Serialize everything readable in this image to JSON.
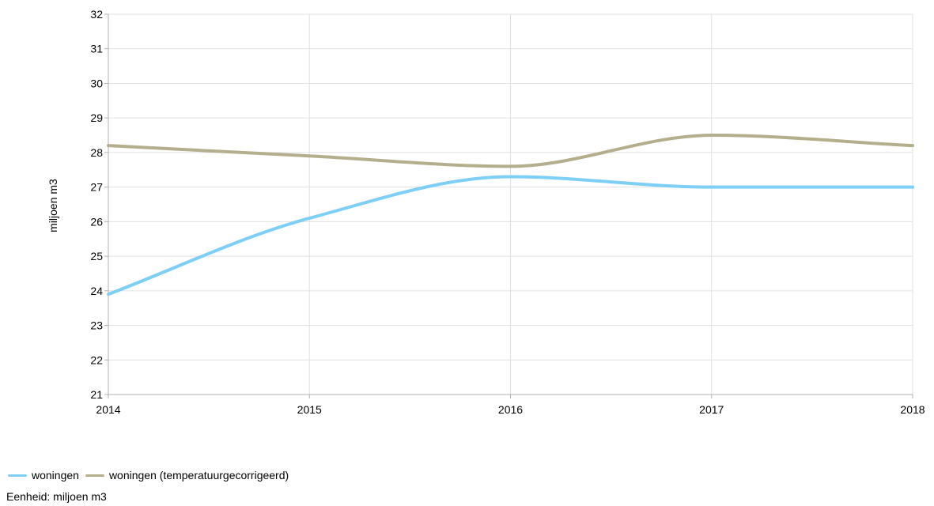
{
  "chart_data": {
    "type": "line",
    "x": [
      2014,
      2015,
      2016,
      2017,
      2018
    ],
    "xlim": [
      2014,
      2018
    ],
    "ylim": [
      21,
      32
    ],
    "yticks": [
      21,
      22,
      23,
      24,
      25,
      26,
      27,
      28,
      29,
      30,
      31,
      32
    ],
    "ylabel": "miljoen m3",
    "xlabel": "",
    "title": "",
    "grid": true,
    "legend_position": "bottom-left",
    "series": [
      {
        "name": "woningen",
        "color": "#7DCFF5",
        "values": [
          23.9,
          26.1,
          27.3,
          27.0,
          27.0
        ]
      },
      {
        "name": "woningen (temperatuurgecorrigeerd)",
        "color": "#B5AE8C",
        "values": [
          28.2,
          27.9,
          27.6,
          28.5,
          28.2
        ]
      }
    ]
  },
  "footer": {
    "unit_note": "Eenheid: miljoen m3"
  }
}
